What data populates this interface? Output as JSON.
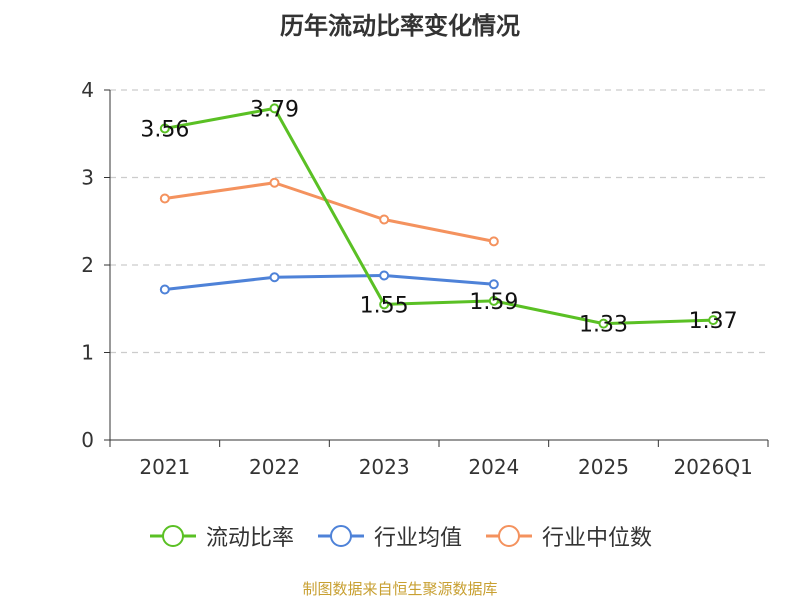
{
  "chart_data": {
    "type": "line",
    "title": "历年流动比率变化情况",
    "categories": [
      "2021",
      "2022",
      "2023",
      "2024",
      "2025",
      "2026Q1"
    ],
    "ylim": [
      0,
      4
    ],
    "yticks": [
      0,
      1,
      2,
      3,
      4
    ],
    "grid": true,
    "legend_position": "bottom",
    "series": [
      {
        "name": "流动比率",
        "color": "#5ac024",
        "values": [
          3.56,
          3.79,
          1.55,
          1.59,
          1.33,
          1.37
        ],
        "labels": [
          "3.56",
          "3.79",
          "1.55",
          "1.59",
          "1.33",
          "1.37"
        ]
      },
      {
        "name": "行业均值",
        "color": "#4e82d8",
        "values": [
          1.72,
          1.86,
          1.88,
          1.78,
          null,
          null
        ]
      },
      {
        "name": "行业中位数",
        "color": "#f4925e",
        "values": [
          2.76,
          2.94,
          2.52,
          2.27,
          null,
          null
        ]
      }
    ]
  },
  "source_text": "制图数据来自恒生聚源数据库"
}
